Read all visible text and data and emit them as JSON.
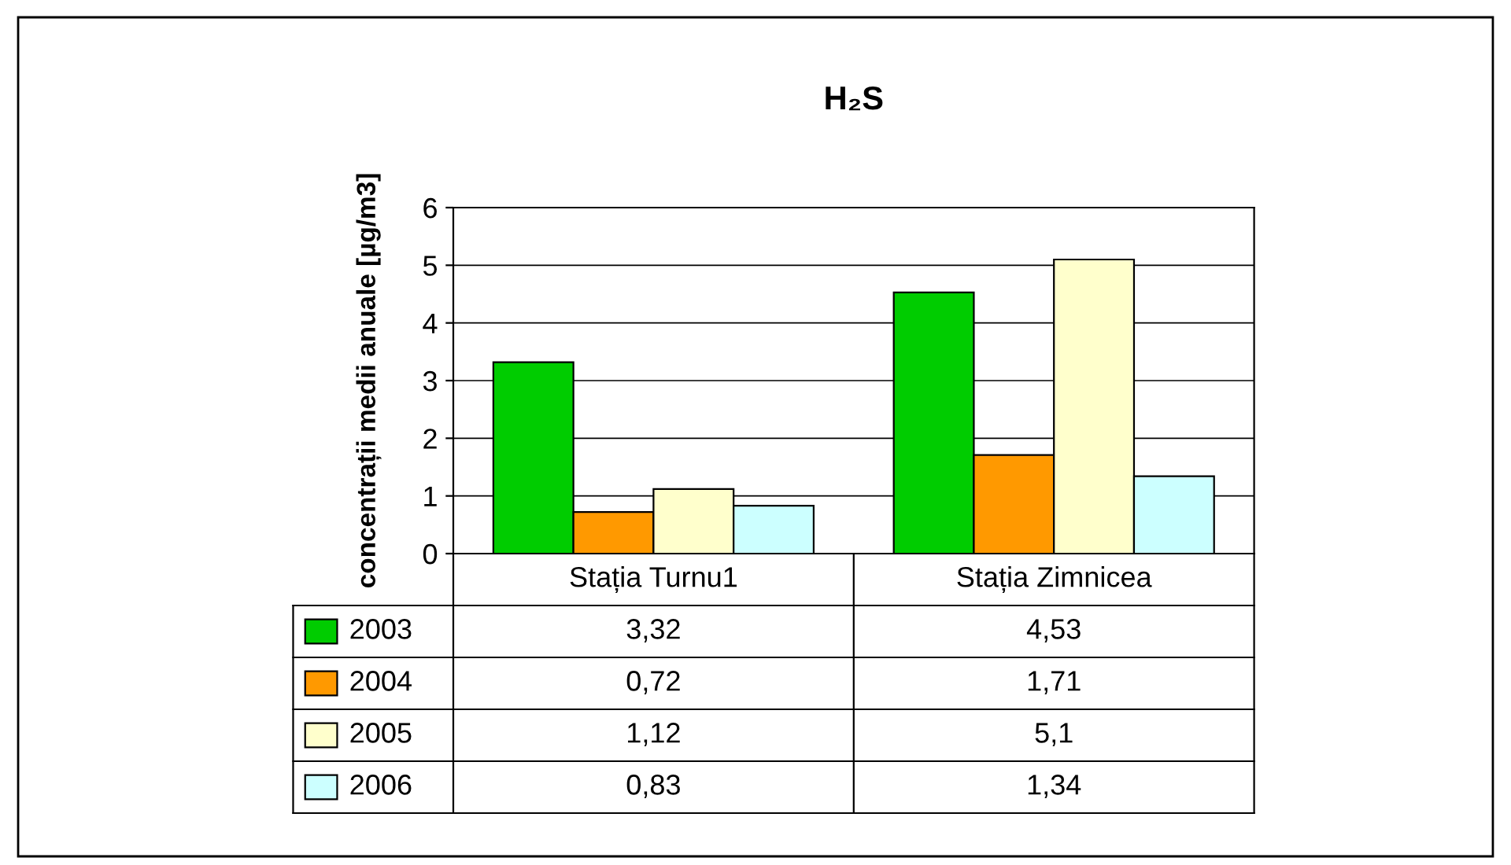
{
  "chart_data": {
    "type": "bar",
    "title": "H₂S",
    "ylabel": "concentrații medii anuale [µg/m3]",
    "categories": [
      "Stația Turnu1",
      "Stația Zimnicea"
    ],
    "series": [
      {
        "name": "2003",
        "color": "#00cc00",
        "values": [
          3.32,
          4.53
        ],
        "value_labels": [
          "3,32",
          "4,53"
        ]
      },
      {
        "name": "2004",
        "color": "#ff9900",
        "values": [
          0.72,
          1.71
        ],
        "value_labels": [
          "0,72",
          "1,71"
        ]
      },
      {
        "name": "2005",
        "color": "#ffffcc",
        "values": [
          1.12,
          5.1
        ],
        "value_labels": [
          "1,12",
          "5,1"
        ]
      },
      {
        "name": "2006",
        "color": "#ccffff",
        "values": [
          0.83,
          1.34
        ],
        "value_labels": [
          "0,83",
          "1,34"
        ]
      }
    ],
    "ylim": [
      0,
      6
    ],
    "yticks": [
      0,
      1,
      2,
      3,
      4,
      5,
      6
    ],
    "grid": "y",
    "legend": "bottom left"
  }
}
